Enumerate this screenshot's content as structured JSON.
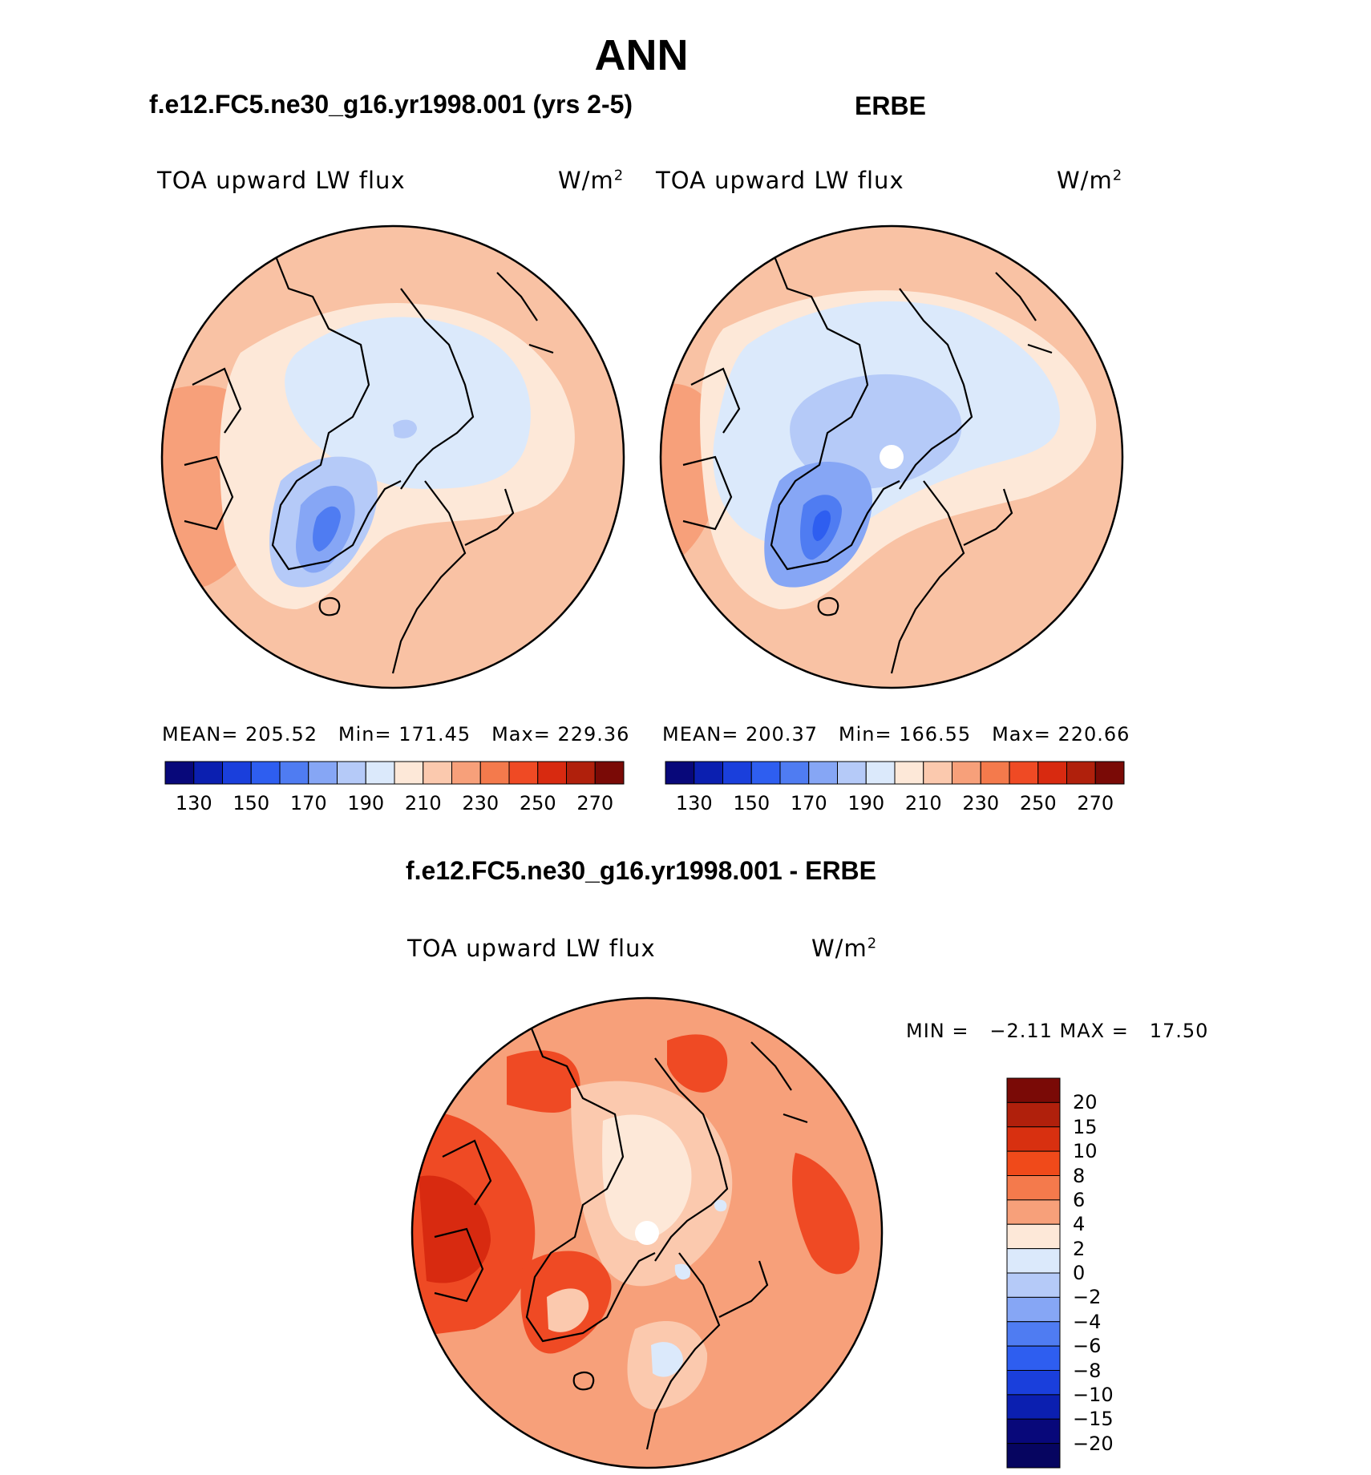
{
  "header": {
    "title": "ANN"
  },
  "panels": [
    {
      "id": "model",
      "subtitle": "f.e12.FC5.ne30_g16.yr1998.001 (yrs 2-5)",
      "variable": "TOA upward LW flux",
      "units": "W/m",
      "units_exp": "2",
      "stats": {
        "mean_label": "MEAN=",
        "mean": "205.52",
        "min_label": "Min=",
        "min": "171.45",
        "max_label": "Max=",
        "max": "229.36"
      }
    },
    {
      "id": "obs",
      "subtitle": "ERBE",
      "variable": "TOA upward LW flux",
      "units": "W/m",
      "units_exp": "2",
      "stats": {
        "mean_label": "MEAN=",
        "mean": "200.37",
        "min_label": "Min=",
        "min": "166.55",
        "max_label": "Max=",
        "max": "220.66"
      }
    }
  ],
  "diff_panel": {
    "subtitle": "f.e12.FC5.ne30_g16.yr1998.001 - ERBE",
    "variable": "TOA upward LW flux",
    "units": "W/m",
    "units_exp": "2",
    "minmax_text": "MIN =   −2.11 MAX =   17.50"
  },
  "colorbar_abs": {
    "ticks": [
      "130",
      "150",
      "170",
      "190",
      "210",
      "230",
      "250",
      "270"
    ],
    "colors": [
      "#08087a",
      "#0b1fb0",
      "#1a3fdc",
      "#2e5ef0",
      "#4f7cf2",
      "#86a6f5",
      "#b5caf8",
      "#dbe9fb",
      "#fde8d8",
      "#fbc9ae",
      "#f7a07a",
      "#f47a4c",
      "#ef4a24",
      "#d82a10",
      "#b0200c",
      "#7a0a06"
    ]
  },
  "colorbar_diff": {
    "ticks": [
      "20",
      "15",
      "10",
      "8",
      "6",
      "4",
      "2",
      "0",
      "−2",
      "−4",
      "−6",
      "−8",
      "−10",
      "−15",
      "−20"
    ],
    "colors": [
      "#7a0a06",
      "#b0200c",
      "#d83010",
      "#f04a1a",
      "#f47a4c",
      "#f7a07a",
      "#fde8d8",
      "#dbe9fb",
      "#b5caf8",
      "#86a6f5",
      "#4f7cf2",
      "#2e5ef0",
      "#1a3fdc",
      "#0b1fb0",
      "#08087a",
      "#060560"
    ]
  },
  "map_colors": {
    "ocean_warm": "#f9c2a4",
    "land_light": "#fde8d8",
    "arctic_light": "#dbe9fb",
    "arctic_mid": "#b5caf8",
    "greenland_blue": "#86a6f5",
    "greenland_core": "#4f7cf2",
    "warm_edge": "#f7a07a",
    "diff_base": "#f7a07a",
    "diff_hot": "#ef4a24",
    "diff_hotter": "#d82a10",
    "diff_pale": "#fbc9ae",
    "diff_center": "#fde8d8"
  }
}
